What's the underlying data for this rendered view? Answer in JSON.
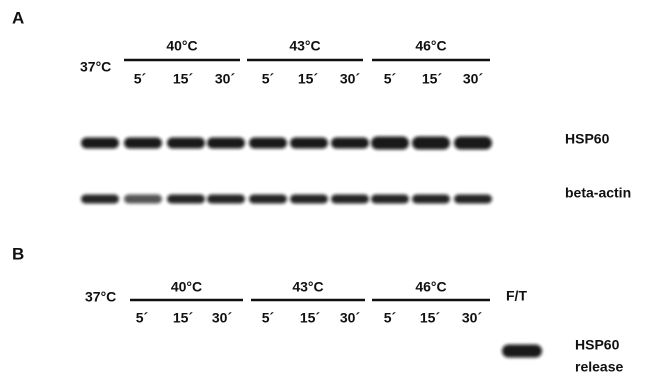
{
  "panels": [
    {
      "label": "A",
      "control": "37°C",
      "groups": [
        {
          "temp": "40°C",
          "times": [
            "5´",
            "15´",
            "30´"
          ]
        },
        {
          "temp": "43°C",
          "times": [
            "5´",
            "15´",
            "30´"
          ]
        },
        {
          "temp": "46°C",
          "times": [
            "5´",
            "15´",
            "30´"
          ]
        }
      ],
      "blots": [
        "HSP60",
        "beta-actin"
      ]
    },
    {
      "label": "B",
      "control": "37°C",
      "groups": [
        {
          "temp": "40°C",
          "times": [
            "5´",
            "15´",
            "30´"
          ]
        },
        {
          "temp": "43°C",
          "times": [
            "5´",
            "15´",
            "30´"
          ]
        },
        {
          "temp": "46°C",
          "times": [
            "5´",
            "15´",
            "30´"
          ]
        }
      ],
      "extra_lane": "F/T",
      "blot_label": [
        "HSP60",
        "release"
      ]
    }
  ]
}
